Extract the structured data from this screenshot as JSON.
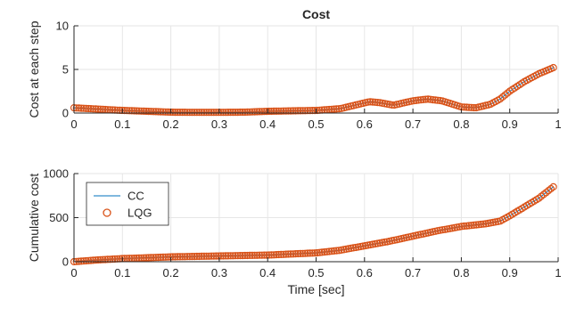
{
  "chart_data": [
    {
      "type": "scatter",
      "title": "Cost",
      "xlabel": "",
      "ylabel": "Cost at each step",
      "xlim": [
        0,
        1
      ],
      "ylim": [
        0,
        10
      ],
      "x_ticks": [
        "0",
        "0.1",
        "0.2",
        "0.3",
        "0.4",
        "0.5",
        "0.6",
        "0.7",
        "0.8",
        "0.9",
        "1"
      ],
      "y_ticks": [
        "0",
        "5",
        "10"
      ],
      "grid": true,
      "colors": {
        "CC": "#0072BD",
        "LQG": "#D95319"
      },
      "series": [
        {
          "name": "CC",
          "x": [
            0,
            0.05,
            0.1,
            0.15,
            0.2,
            0.25,
            0.3,
            0.35,
            0.4,
            0.45,
            0.5,
            0.55,
            0.58,
            0.61,
            0.63,
            0.66,
            0.7,
            0.73,
            0.76,
            0.8,
            0.83,
            0.86,
            0.88,
            0.9,
            0.93,
            0.96,
            0.99
          ],
          "y": [
            0.6,
            0.45,
            0.3,
            0.2,
            0.1,
            0.08,
            0.08,
            0.1,
            0.2,
            0.25,
            0.3,
            0.5,
            0.9,
            1.3,
            1.2,
            0.9,
            1.4,
            1.6,
            1.4,
            0.7,
            0.6,
            1.0,
            1.6,
            2.5,
            3.6,
            4.5,
            5.2
          ]
        },
        {
          "name": "LQG",
          "x": [
            0,
            0.05,
            0.1,
            0.15,
            0.2,
            0.25,
            0.3,
            0.35,
            0.4,
            0.45,
            0.5,
            0.55,
            0.58,
            0.61,
            0.63,
            0.66,
            0.7,
            0.73,
            0.76,
            0.8,
            0.83,
            0.86,
            0.88,
            0.9,
            0.93,
            0.96,
            0.99
          ],
          "y": [
            0.6,
            0.45,
            0.3,
            0.2,
            0.1,
            0.08,
            0.08,
            0.1,
            0.2,
            0.25,
            0.3,
            0.5,
            0.9,
            1.3,
            1.2,
            0.9,
            1.4,
            1.6,
            1.4,
            0.7,
            0.6,
            1.0,
            1.6,
            2.5,
            3.6,
            4.5,
            5.2
          ]
        }
      ]
    },
    {
      "type": "scatter",
      "title": "",
      "xlabel": "Time [sec]",
      "ylabel": "Cumulative cost",
      "xlim": [
        0,
        1
      ],
      "ylim": [
        0,
        1000
      ],
      "x_ticks": [
        "0",
        "0.1",
        "0.2",
        "0.3",
        "0.4",
        "0.5",
        "0.6",
        "0.7",
        "0.8",
        "0.9",
        "1"
      ],
      "y_ticks": [
        "0",
        "500",
        "1000"
      ],
      "grid": true,
      "legend": {
        "placement": "top-left",
        "entries": [
          "CC",
          "LQG"
        ]
      },
      "colors": {
        "CC": "#0072BD",
        "LQG": "#D95319"
      },
      "series": [
        {
          "name": "CC",
          "x": [
            0,
            0.05,
            0.1,
            0.15,
            0.2,
            0.3,
            0.4,
            0.5,
            0.55,
            0.6,
            0.65,
            0.7,
            0.75,
            0.8,
            0.85,
            0.88,
            0.9,
            0.93,
            0.96,
            0.99
          ],
          "y": [
            0,
            20,
            35,
            45,
            55,
            65,
            75,
            100,
            130,
            180,
            230,
            290,
            350,
            400,
            430,
            460,
            520,
            620,
            720,
            850
          ]
        },
        {
          "name": "LQG",
          "x": [
            0,
            0.05,
            0.1,
            0.15,
            0.2,
            0.3,
            0.4,
            0.5,
            0.55,
            0.6,
            0.65,
            0.7,
            0.75,
            0.8,
            0.85,
            0.88,
            0.9,
            0.93,
            0.96,
            0.99
          ],
          "y": [
            0,
            20,
            35,
            45,
            55,
            65,
            75,
            100,
            130,
            180,
            230,
            290,
            350,
            400,
            430,
            460,
            520,
            620,
            720,
            850
          ]
        }
      ]
    }
  ]
}
